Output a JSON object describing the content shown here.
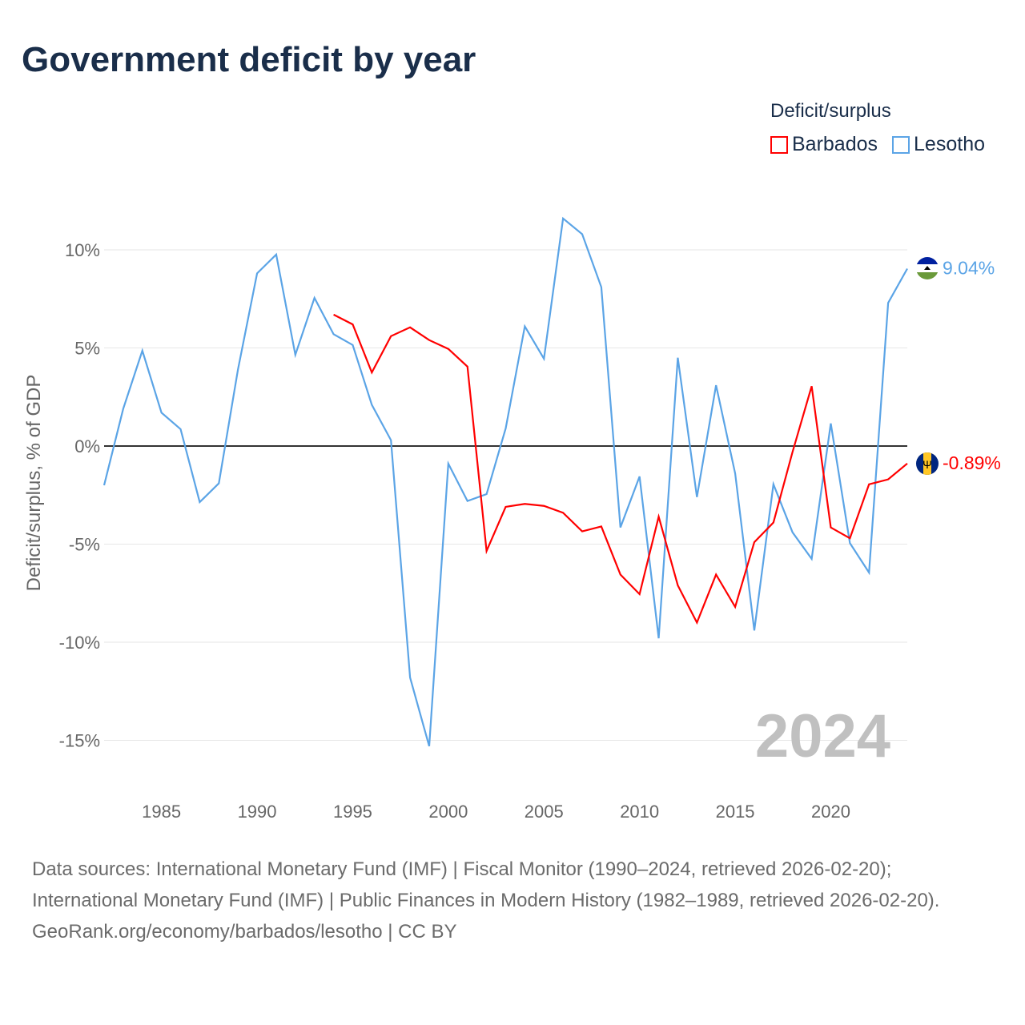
{
  "title": "Government deficit by year",
  "legend": {
    "title": "Deficit/surplus",
    "items": [
      {
        "label": "Barbados",
        "color": "#ff0000"
      },
      {
        "label": "Lesotho",
        "color": "#5ba4e6"
      }
    ]
  },
  "year_watermark": "2024",
  "footer": {
    "sources": "Data sources: International Monetary Fund (IMF) | Fiscal Monitor (1990–2024, retrieved 2026-02-20); International Monetary Fund (IMF) | Public Finances in Modern History (1982–1989, retrieved 2026-02-20).",
    "credit": "GeoRank.org/economy/barbados/lesotho | CC BY"
  },
  "chart_data": {
    "type": "line",
    "title": "Government deficit by year",
    "xlabel": "",
    "ylabel": "Deficit/surplus, % of GDP",
    "xlim": [
      1982,
      2024
    ],
    "ylim": [
      -16.5,
      12
    ],
    "yticks": [
      10,
      5,
      0,
      -5,
      -10,
      -15
    ],
    "ytick_labels": [
      "10%",
      "5%",
      "0%",
      "-5%",
      "-10%",
      "-15%"
    ],
    "xticks": [
      1985,
      1990,
      1995,
      2000,
      2005,
      2010,
      2015,
      2020
    ],
    "xtick_labels": [
      "1985",
      "1990",
      "1995",
      "2000",
      "2005",
      "2010",
      "2015",
      "2020"
    ],
    "grid": true,
    "legend_position": "top-right",
    "series": [
      {
        "name": "Barbados",
        "color": "#ff0000",
        "end_label": "-0.89%",
        "x": [
          1994,
          1995,
          1996,
          1997,
          1998,
          1999,
          2000,
          2001,
          2002,
          2003,
          2004,
          2005,
          2006,
          2007,
          2008,
          2009,
          2010,
          2011,
          2012,
          2013,
          2014,
          2015,
          2016,
          2017,
          2018,
          2019,
          2020,
          2021,
          2022,
          2023,
          2024
        ],
        "values": [
          6.7,
          6.2,
          3.75,
          5.6,
          6.05,
          5.4,
          4.95,
          4.05,
          -5.35,
          -3.1,
          -2.95,
          -3.05,
          -3.4,
          -4.35,
          -4.1,
          -6.55,
          -7.55,
          -3.6,
          -7.1,
          -9.0,
          -6.55,
          -8.2,
          -4.9,
          -3.9,
          -0.3,
          3.05,
          -4.15,
          -4.7,
          -1.95,
          -1.7,
          -0.89
        ]
      },
      {
        "name": "Lesotho",
        "color": "#5ba4e6",
        "end_label": "9.04%",
        "x": [
          1982,
          1983,
          1984,
          1985,
          1986,
          1987,
          1988,
          1989,
          1990,
          1991,
          1992,
          1993,
          1994,
          1995,
          1996,
          1997,
          1998,
          1999,
          2000,
          2001,
          2002,
          2003,
          2004,
          2005,
          2006,
          2007,
          2008,
          2009,
          2010,
          2011,
          2012,
          2013,
          2014,
          2015,
          2016,
          2017,
          2018,
          2019,
          2020,
          2021,
          2022,
          2023,
          2024
        ],
        "values": [
          -2.0,
          1.9,
          4.86,
          1.7,
          0.86,
          -2.86,
          -1.9,
          3.9,
          8.8,
          9.76,
          4.65,
          7.55,
          5.7,
          5.15,
          2.1,
          0.3,
          -11.8,
          -15.3,
          -0.9,
          -2.8,
          -2.45,
          0.9,
          6.1,
          4.45,
          11.6,
          10.8,
          8.1,
          -4.15,
          -1.55,
          -9.8,
          4.5,
          -2.6,
          3.1,
          -1.4,
          -9.4,
          -1.95,
          -4.4,
          -5.75,
          1.15,
          -4.95,
          -6.45,
          7.3,
          9.04
        ]
      }
    ]
  }
}
